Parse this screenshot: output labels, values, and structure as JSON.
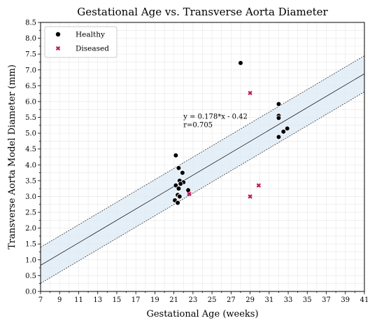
{
  "chart_data": {
    "type": "scatter",
    "title": "Gestational Age vs. Transverse Aorta Diameter",
    "xlabel": "Gestational Age (weeks)",
    "ylabel": "Transverse Aorta Model Diameter (mm)",
    "xlim": [
      7,
      41
    ],
    "ylim": [
      0,
      8.5
    ],
    "x_ticks": [
      "7",
      "9",
      "11",
      "13",
      "15",
      "17",
      "19",
      "21",
      "23",
      "25",
      "27",
      "29",
      "31",
      "33",
      "35",
      "37",
      "39",
      "41"
    ],
    "y_ticks": [
      "0.0",
      "0.5",
      "1.0",
      "1.5",
      "2.0",
      "2.5",
      "3.0",
      "3.5",
      "4.0",
      "4.5",
      "5.0",
      "5.5",
      "6.0",
      "6.5",
      "7.0",
      "7.5",
      "8.0",
      "8.5"
    ],
    "grid": true,
    "legend_position": "top-left",
    "series": [
      {
        "name": "Healthy",
        "marker": "circle",
        "color": "#000000",
        "points": [
          {
            "x": 21.2,
            "y": 4.3
          },
          {
            "x": 21.5,
            "y": 3.9
          },
          {
            "x": 21.9,
            "y": 3.75
          },
          {
            "x": 21.6,
            "y": 3.5
          },
          {
            "x": 22.0,
            "y": 3.45
          },
          {
            "x": 21.7,
            "y": 3.4
          },
          {
            "x": 21.2,
            "y": 3.35
          },
          {
            "x": 21.5,
            "y": 3.25
          },
          {
            "x": 22.5,
            "y": 3.2
          },
          {
            "x": 21.4,
            "y": 3.05
          },
          {
            "x": 21.6,
            "y": 3.0
          },
          {
            "x": 21.1,
            "y": 2.88
          },
          {
            "x": 21.4,
            "y": 2.8
          },
          {
            "x": 28.0,
            "y": 7.22
          },
          {
            "x": 32.0,
            "y": 5.92
          },
          {
            "x": 32.0,
            "y": 5.55
          },
          {
            "x": 32.0,
            "y": 5.48
          },
          {
            "x": 32.9,
            "y": 5.15
          },
          {
            "x": 32.5,
            "y": 5.05
          },
          {
            "x": 32.0,
            "y": 4.88
          }
        ]
      },
      {
        "name": "Diseased",
        "marker": "x",
        "color": "#c2185b",
        "points": [
          {
            "x": 29.0,
            "y": 6.27
          },
          {
            "x": 29.9,
            "y": 3.35
          },
          {
            "x": 29.0,
            "y": 3.0
          },
          {
            "x": 22.6,
            "y": 3.08
          }
        ]
      }
    ],
    "regression": {
      "equation": "y = 0.178*x - 0.42",
      "r": "r=0.705",
      "slope": 0.178,
      "intercept": -0.42,
      "band_halfwidth": 0.57,
      "band_color": "#dce9f5"
    }
  }
}
